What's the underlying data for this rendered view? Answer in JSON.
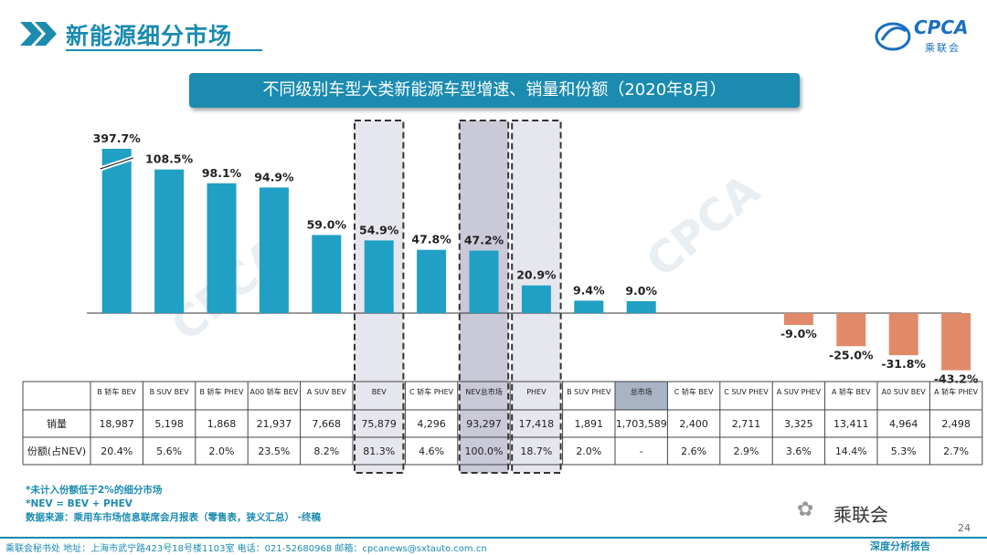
{
  "header": {
    "section_title": "新能源细分市场",
    "logo_text": "CPCA",
    "logo_subtitle": "乘联会"
  },
  "banner": {
    "title": "不同级别车型大类新能源车型增速、销量和份额（2020年8月）"
  },
  "colors": {
    "accent": "#1b8bb0",
    "positive_bar": "#1fa0c4",
    "negative_bar": "#e08a6a",
    "highlight_box": "#e6e6ee",
    "nev_box": "#c9c9d8"
  },
  "chart_data": {
    "type": "bar",
    "title": "不同级别车型大类新能源车型增速、销量和份额（2020年8月）",
    "categories": [
      "B 轿车 BEV",
      "B SUV BEV",
      "B 轿车 PHEV",
      "A00 轿车 BEV",
      "A SUV BEV",
      "BEV",
      "C 轿车 PHEV",
      "NEV总市场",
      "PHEV",
      "B SUV PHEV",
      "总市场",
      "C 轿车 BEV",
      "C SUV PHEV",
      "A SUV PHEV",
      "A 轿车 BEV",
      "A0 SUV BEV",
      "A 轿车 PHEV"
    ],
    "series": [
      {
        "values": [
          397.7,
          108.5,
          98.1,
          94.9,
          59.0,
          54.9,
          47.8,
          47.2,
          20.9,
          9.4,
          9.0,
          null,
          null,
          -9.0,
          -25.0,
          -31.8,
          -43.2
        ]
      }
    ],
    "value_labels": [
      "397.7%",
      "108.5%",
      "98.1%",
      "94.9%",
      "59.0%",
      "54.9%",
      "47.8%",
      "47.2%",
      "20.9%",
      "9.4%",
      "9.0%",
      "",
      "",
      "-9.0%",
      "-25.0%",
      "-31.8%",
      "-43.2%"
    ],
    "axis_break_on_first_bar": true,
    "highlighted_categories": [
      "BEV",
      "NEV总市场",
      "PHEV"
    ],
    "table": {
      "row_labels": [
        "销量",
        "份额(占NEV)"
      ],
      "sales": [
        "18,987",
        "5,198",
        "1,868",
        "21,937",
        "7,668",
        "75,879",
        "4,296",
        "93,297",
        "17,418",
        "1,891",
        "1,703,589",
        "2,400",
        "2,711",
        "3,325",
        "13,411",
        "4,964",
        "2,498"
      ],
      "share": [
        "20.4%",
        "5.6%",
        "2.0%",
        "23.5%",
        "8.2%",
        "81.3%",
        "4.6%",
        "100.0%",
        "18.7%",
        "2.0%",
        "-",
        "2.6%",
        "2.9%",
        "3.6%",
        "14.4%",
        "5.3%",
        "2.7%"
      ]
    }
  },
  "notes": [
    "*未计入份额低于2%的细分市场",
    "*NEV = BEV + PHEV",
    "数据来源：乘用车市场信息联席会月报表（零售表，狭义汇总）  -终稿"
  ],
  "footer": {
    "contact": "乘联会秘书处    地址：上海市武宁路423号18号楼1103室    电话：021-52680968    邮箱：cpcanews@sxtauto.com.cn",
    "tagline": "深度分析报告",
    "page_number": "24",
    "wechat_label": "乘联会"
  }
}
